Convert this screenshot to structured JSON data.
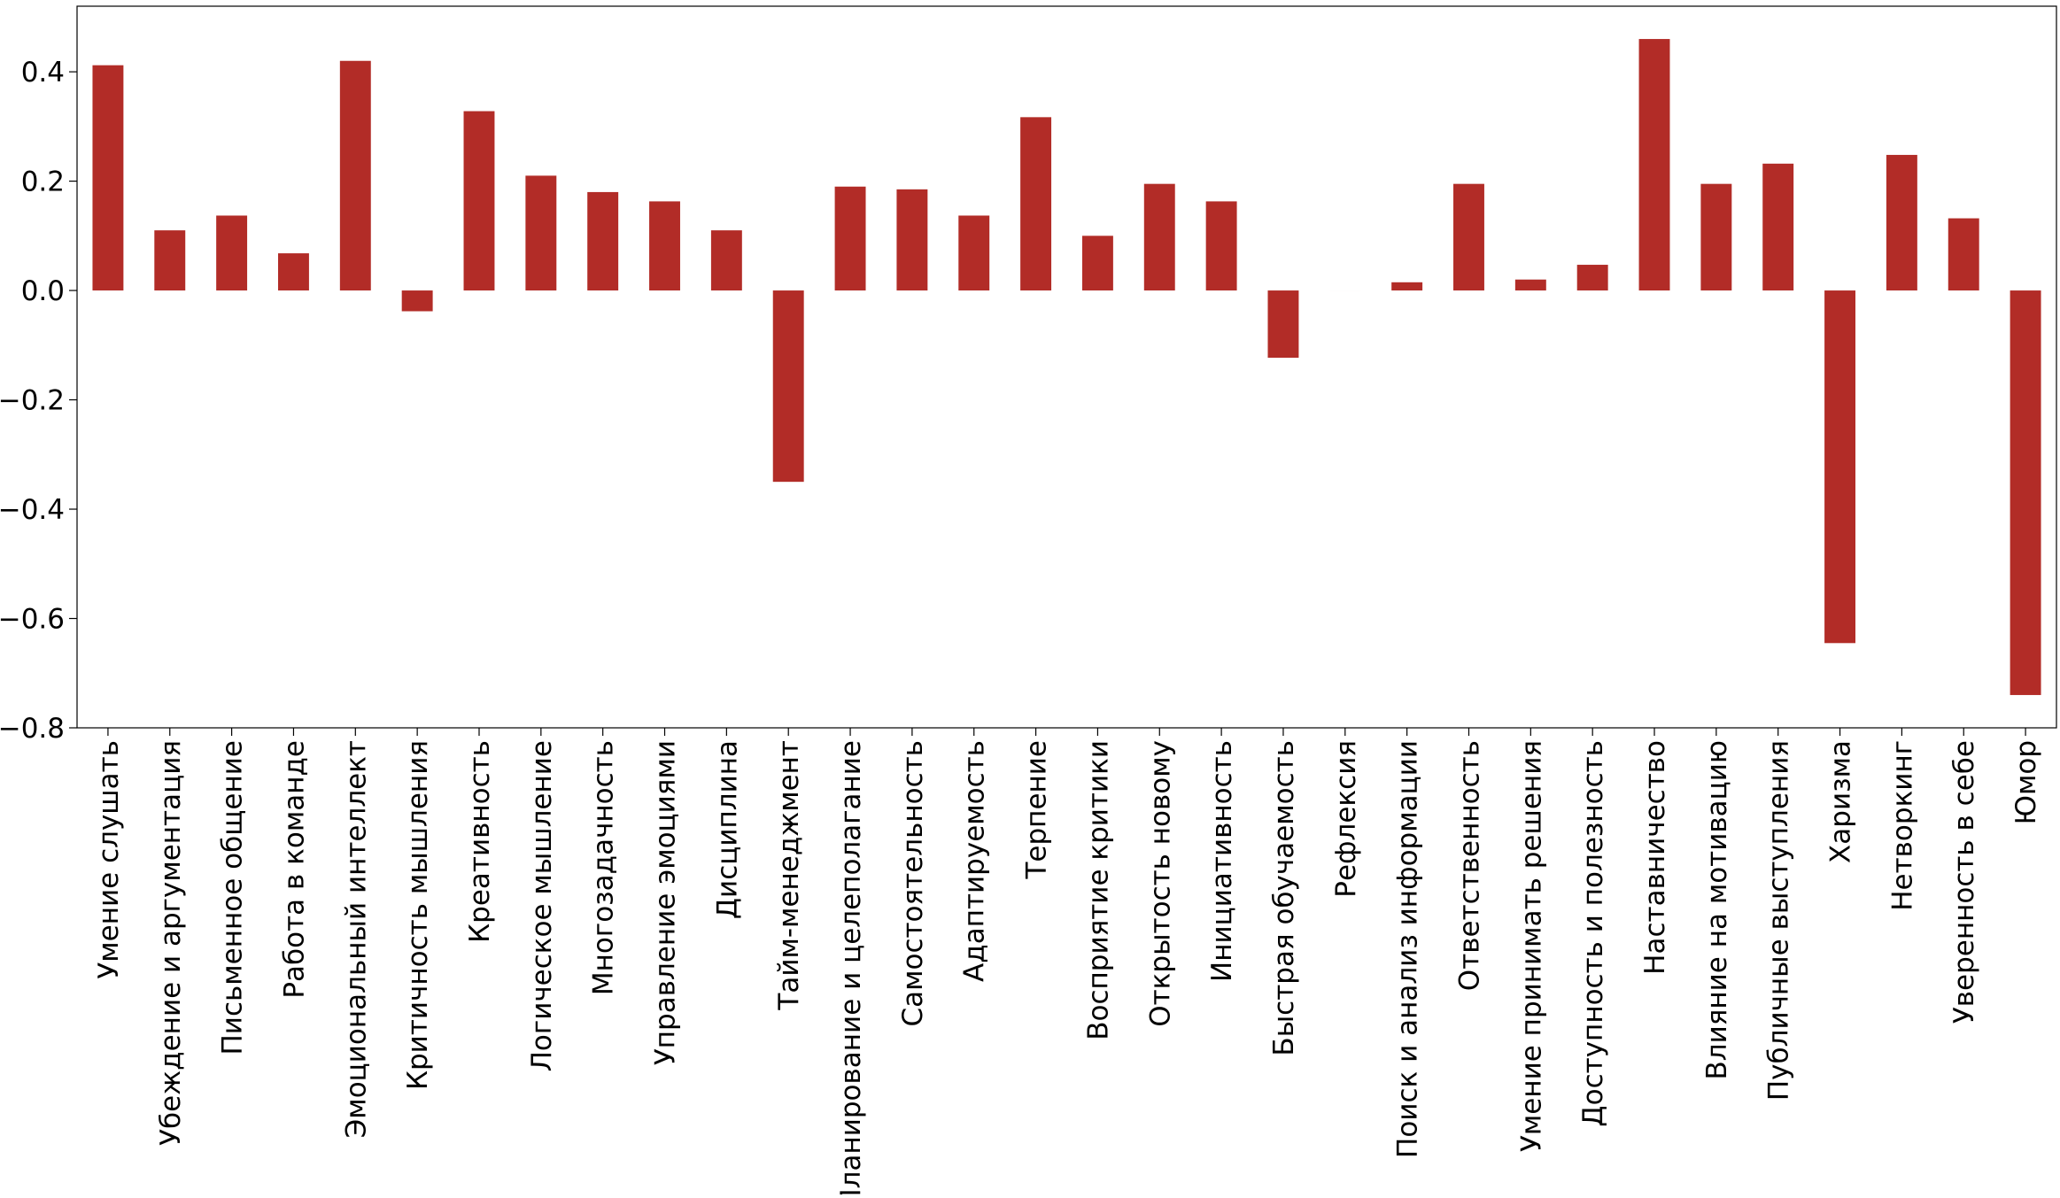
{
  "chart_data": {
    "type": "bar",
    "title": "",
    "xlabel": "",
    "ylabel": "",
    "ylim": [
      -0.8,
      0.52
    ],
    "yticks": [
      -0.8,
      -0.6,
      -0.4,
      -0.2,
      0.0,
      0.2,
      0.4
    ],
    "ytick_labels": [
      "−0.8",
      "−0.6",
      "−0.4",
      "−0.2",
      "0.0",
      "0.2",
      "0.4"
    ],
    "grid": false,
    "bar_color": "#b22c27",
    "categories": [
      "Умение слушать",
      "Убеждение и аргументация",
      "Письменное общение",
      "Работа в команде",
      "Эмоциональный интеллект",
      "Критичность мышления",
      "Креативность",
      "Логическое мышление",
      "Многозадачность",
      "Управление эмоциями",
      "Дисциплина",
      "Тайм-менеджмент",
      "Планирование и целеполагание",
      "Самостоятельность",
      "Адаптируемость",
      "Терпение",
      "Восприятие критики",
      "Открытость новому",
      "Инициативность",
      "Быстрая обучаемость",
      "Рефлексия",
      "Поиск и анализ информации",
      "Ответственность",
      "Умение принимать решения",
      "Доступность и полезность",
      "Наставничество",
      "Влияние на мотивацию",
      "Публичные выступления",
      "Харизма",
      "Нетворкинг",
      "Уверенность в себе",
      "Юмор"
    ],
    "values": [
      0.412,
      0.11,
      0.137,
      0.068,
      0.42,
      -0.038,
      0.328,
      0.21,
      0.18,
      0.163,
      0.11,
      -0.35,
      0.19,
      0.185,
      0.137,
      0.317,
      0.1,
      0.195,
      0.163,
      -0.123,
      0.0,
      0.015,
      0.195,
      0.02,
      0.047,
      0.46,
      0.195,
      0.232,
      -0.645,
      0.248,
      0.132,
      -0.74
    ]
  }
}
